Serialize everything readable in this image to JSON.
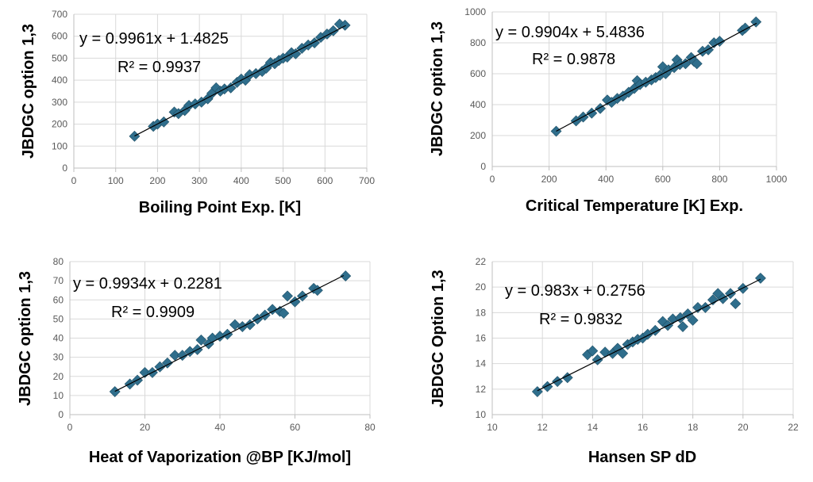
{
  "colors": {
    "marker": "#2f6e8c",
    "trendline": "#000000",
    "grid": "#d9d9d9",
    "axis": "#bfbfbf"
  },
  "chart_data": [
    {
      "type": "scatter",
      "xlabel": "Boiling Point Exp. [K]",
      "ylabel": "JBDGC option 1,3",
      "xlim": [
        0,
        700
      ],
      "ylim": [
        0,
        700
      ],
      "xticks": [
        0,
        100,
        200,
        300,
        400,
        500,
        600,
        700
      ],
      "yticks": [
        0,
        100,
        200,
        300,
        400,
        500,
        600,
        700
      ],
      "grid": true,
      "equation": "y = 0.9961x + 1.4825",
      "r2": "R² = 0.9937",
      "trendline": {
        "slope": 0.9961,
        "intercept": 1.4825,
        "x_range": [
          145,
          650
        ]
      },
      "points": [
        [
          145,
          145
        ],
        [
          190,
          190
        ],
        [
          200,
          200
        ],
        [
          215,
          210
        ],
        [
          240,
          255
        ],
        [
          250,
          248
        ],
        [
          265,
          262
        ],
        [
          275,
          285
        ],
        [
          290,
          292
        ],
        [
          305,
          300
        ],
        [
          320,
          315
        ],
        [
          330,
          340
        ],
        [
          340,
          365
        ],
        [
          350,
          350
        ],
        [
          360,
          360
        ],
        [
          375,
          365
        ],
        [
          390,
          390
        ],
        [
          400,
          405
        ],
        [
          410,
          400
        ],
        [
          420,
          425
        ],
        [
          435,
          430
        ],
        [
          450,
          440
        ],
        [
          460,
          455
        ],
        [
          470,
          480
        ],
        [
          480,
          475
        ],
        [
          490,
          490
        ],
        [
          500,
          500
        ],
        [
          510,
          505
        ],
        [
          520,
          525
        ],
        [
          530,
          520
        ],
        [
          545,
          545
        ],
        [
          560,
          560
        ],
        [
          575,
          570
        ],
        [
          590,
          595
        ],
        [
          605,
          610
        ],
        [
          620,
          625
        ],
        [
          635,
          655
        ],
        [
          648,
          650
        ]
      ]
    },
    {
      "type": "scatter",
      "xlabel": "Critical Temperature [K] Exp.",
      "ylabel": "JBDGC option 1,3",
      "xlim": [
        0,
        1000
      ],
      "ylim": [
        0,
        1000
      ],
      "xticks": [
        0,
        200,
        400,
        600,
        800,
        1000
      ],
      "yticks": [
        0,
        200,
        400,
        600,
        800,
        1000
      ],
      "grid": true,
      "equation": "y = 0.9904x + 5.4836",
      "r2": "R² = 0.9878",
      "trendline": {
        "slope": 0.9904,
        "intercept": 5.4836,
        "x_range": [
          225,
          930
        ]
      },
      "points": [
        [
          225,
          228
        ],
        [
          295,
          295
        ],
        [
          320,
          320
        ],
        [
          350,
          345
        ],
        [
          380,
          375
        ],
        [
          405,
          430
        ],
        [
          420,
          415
        ],
        [
          440,
          440
        ],
        [
          460,
          455
        ],
        [
          480,
          480
        ],
        [
          500,
          505
        ],
        [
          510,
          555
        ],
        [
          520,
          530
        ],
        [
          540,
          545
        ],
        [
          560,
          560
        ],
        [
          575,
          575
        ],
        [
          590,
          590
        ],
        [
          600,
          645
        ],
        [
          610,
          600
        ],
        [
          620,
          625
        ],
        [
          640,
          640
        ],
        [
          650,
          690
        ],
        [
          660,
          660
        ],
        [
          680,
          665
        ],
        [
          700,
          705
        ],
        [
          710,
          680
        ],
        [
          720,
          665
        ],
        [
          740,
          745
        ],
        [
          760,
          755
        ],
        [
          780,
          800
        ],
        [
          800,
          810
        ],
        [
          880,
          880
        ],
        [
          890,
          895
        ],
        [
          928,
          935
        ]
      ]
    },
    {
      "type": "scatter",
      "xlabel": "Heat of Vaporization @BP [KJ/mol]",
      "ylabel": "JBDGC option 1,3",
      "xlim": [
        0,
        80
      ],
      "ylim": [
        0,
        80
      ],
      "xticks": [
        0,
        20,
        40,
        60,
        80
      ],
      "yticks": [
        0,
        10,
        20,
        30,
        40,
        50,
        60,
        70,
        80
      ],
      "grid": true,
      "equation": "y = 0.9934x + 0.2281",
      "r2": "R² = 0.9909",
      "trendline": {
        "slope": 0.9934,
        "intercept": 0.2281,
        "x_range": [
          12,
          73
        ]
      },
      "points": [
        [
          12,
          12
        ],
        [
          16,
          16
        ],
        [
          18,
          18
        ],
        [
          20,
          22
        ],
        [
          22,
          22
        ],
        [
          24,
          25
        ],
        [
          26,
          27
        ],
        [
          28,
          31
        ],
        [
          30,
          31
        ],
        [
          32,
          33
        ],
        [
          34,
          34
        ],
        [
          35,
          39
        ],
        [
          37,
          37
        ],
        [
          38,
          40
        ],
        [
          40,
          41
        ],
        [
          42,
          42
        ],
        [
          44,
          47
        ],
        [
          46,
          46
        ],
        [
          48,
          47
        ],
        [
          50,
          50
        ],
        [
          52,
          52
        ],
        [
          54,
          55
        ],
        [
          56,
          54
        ],
        [
          57,
          53
        ],
        [
          58,
          62
        ],
        [
          60,
          59
        ],
        [
          62,
          62
        ],
        [
          65,
          66
        ],
        [
          66,
          65
        ],
        [
          73.5,
          72.5
        ]
      ]
    },
    {
      "type": "scatter",
      "xlabel": "Hansen SP dD",
      "ylabel": "JBDGC Option 1,3",
      "xlim": [
        10,
        22
      ],
      "ylim": [
        10,
        22
      ],
      "xticks": [
        10,
        12,
        14,
        16,
        18,
        20,
        22
      ],
      "yticks": [
        10,
        12,
        14,
        16,
        18,
        20,
        22
      ],
      "grid": true,
      "equation": "y = 0.983x + 0.2756",
      "r2": "R² = 0.9832",
      "trendline": {
        "slope": 0.983,
        "intercept": 0.2756,
        "x_range": [
          11.8,
          20.7
        ]
      },
      "points": [
        [
          11.8,
          11.8
        ],
        [
          12.2,
          12.2
        ],
        [
          12.6,
          12.6
        ],
        [
          13.0,
          12.9
        ],
        [
          13.8,
          14.7
        ],
        [
          14.0,
          15.0
        ],
        [
          14.2,
          14.3
        ],
        [
          14.5,
          14.9
        ],
        [
          14.8,
          14.8
        ],
        [
          15.0,
          15.2
        ],
        [
          15.2,
          14.8
        ],
        [
          15.4,
          15.5
        ],
        [
          15.6,
          15.7
        ],
        [
          15.8,
          15.9
        ],
        [
          16.0,
          16.0
        ],
        [
          16.2,
          16.3
        ],
        [
          16.5,
          16.6
        ],
        [
          16.8,
          17.3
        ],
        [
          17.0,
          17.0
        ],
        [
          17.2,
          17.5
        ],
        [
          17.5,
          17.6
        ],
        [
          17.6,
          16.9
        ],
        [
          17.8,
          17.9
        ],
        [
          18.0,
          17.4
        ],
        [
          18.2,
          18.4
        ],
        [
          18.5,
          18.4
        ],
        [
          18.8,
          19.0
        ],
        [
          19.0,
          19.5
        ],
        [
          19.2,
          19.1
        ],
        [
          19.5,
          19.5
        ],
        [
          19.7,
          18.7
        ],
        [
          20.0,
          19.9
        ],
        [
          20.7,
          20.7
        ]
      ]
    }
  ]
}
